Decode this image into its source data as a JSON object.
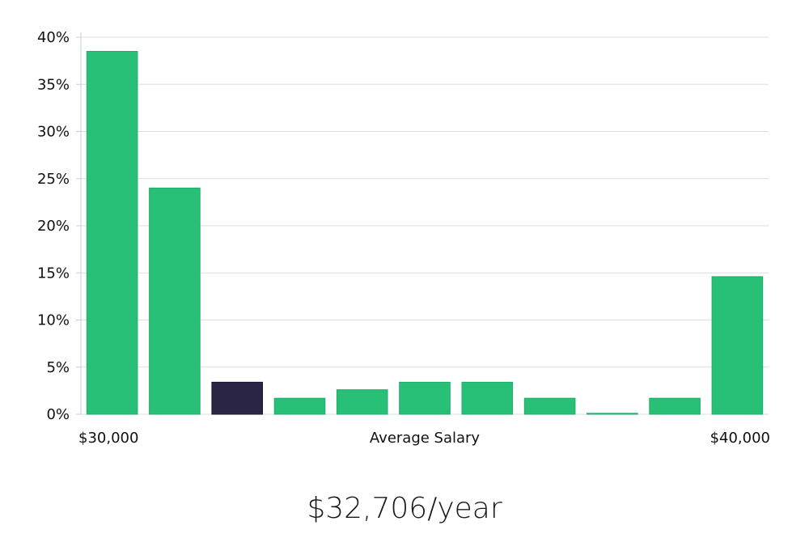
{
  "chart_data": {
    "type": "bar",
    "title": "",
    "xlabel": "Average Salary",
    "ylabel": "",
    "x_start_label": "$30,000",
    "x_end_label": "$40,000",
    "y_ticks": [
      "0%",
      "5%",
      "10%",
      "15%",
      "20%",
      "25%",
      "30%",
      "35%",
      "40%"
    ],
    "ylim": [
      0,
      40
    ],
    "grid": true,
    "values": [
      38.5,
      24.0,
      3.4,
      1.7,
      2.6,
      3.4,
      3.4,
      1.7,
      0.1,
      1.7,
      14.6
    ],
    "highlight_index": 2,
    "colors": {
      "bar": "#28bf77",
      "highlight": "#2a2545",
      "grid": "#dddddd",
      "axis": "#cccccc"
    }
  },
  "salary": {
    "text": "$32,706/year"
  }
}
